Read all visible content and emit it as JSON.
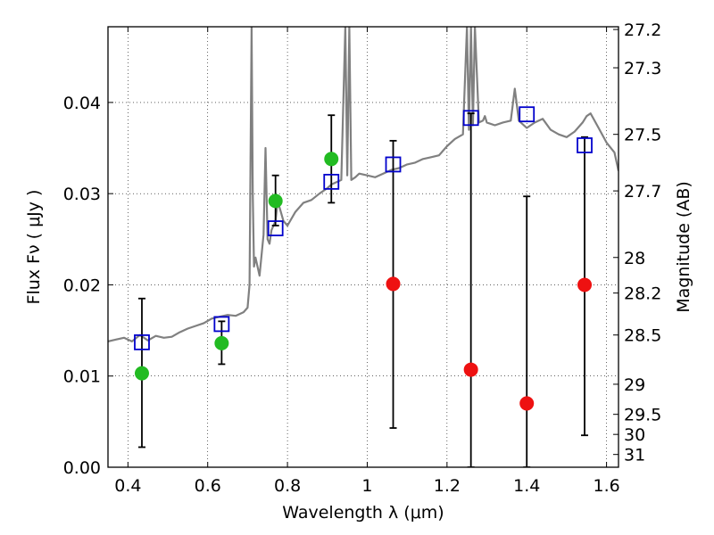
{
  "chart_data": {
    "type": "scatter",
    "xlabel": "Wavelength  λ (μm)",
    "ylabel": "Flux  Fν  ( μJy )",
    "y2label": "Magnitude (AB)",
    "xlim": [
      0.35,
      1.63
    ],
    "ylim": [
      0.0,
      0.0483
    ],
    "grid": true,
    "x_ticks": [
      0.4,
      0.6,
      0.8,
      1.0,
      1.2,
      1.4,
      1.6
    ],
    "x_tick_labels": [
      "0.4",
      "0.6",
      "0.8",
      "1",
      "1.2",
      "1.4",
      "1.6"
    ],
    "y_ticks": [
      0.0,
      0.01,
      0.02,
      0.03,
      0.04
    ],
    "y_tick_labels": [
      "0.00",
      "0.01",
      "0.02",
      "0.03",
      "0.04"
    ],
    "mag_ticks": [
      {
        "label": "27.2",
        "flux": 0.048
      },
      {
        "label": "27.3",
        "flux": 0.0438
      },
      {
        "label": "27.5",
        "flux": 0.0365
      },
      {
        "label": "27.7",
        "flux": 0.0303
      },
      {
        "label": "28",
        "flux": 0.023
      },
      {
        "label": "28.2",
        "flux": 0.0191
      },
      {
        "label": "28.5",
        "flux": 0.0145
      },
      {
        "label": "29",
        "flux": 0.0091
      },
      {
        "label": "29.5",
        "flux": 0.0058
      },
      {
        "label": "30",
        "flux": 0.0036
      },
      {
        "label": "31",
        "flux": 0.0014
      }
    ],
    "spectrum": {
      "color": "#808080",
      "x": [
        0.35,
        0.37,
        0.39,
        0.41,
        0.43,
        0.45,
        0.47,
        0.49,
        0.51,
        0.53,
        0.55,
        0.57,
        0.59,
        0.61,
        0.63,
        0.65,
        0.67,
        0.69,
        0.7,
        0.705,
        0.71,
        0.713,
        0.716,
        0.72,
        0.73,
        0.74,
        0.745,
        0.75,
        0.755,
        0.76,
        0.77,
        0.775,
        0.78,
        0.79,
        0.8,
        0.82,
        0.84,
        0.86,
        0.88,
        0.9,
        0.91,
        0.92,
        0.935,
        0.945,
        0.95,
        0.955,
        0.96,
        0.97,
        0.98,
        1.0,
        1.02,
        1.04,
        1.06,
        1.08,
        1.1,
        1.12,
        1.14,
        1.16,
        1.18,
        1.2,
        1.22,
        1.24,
        1.25,
        1.255,
        1.26,
        1.265,
        1.27,
        1.28,
        1.29,
        1.295,
        1.3,
        1.32,
        1.34,
        1.36,
        1.37,
        1.38,
        1.4,
        1.42,
        1.44,
        1.46,
        1.48,
        1.5,
        1.52,
        1.54,
        1.55,
        1.56,
        1.58,
        1.6,
        1.62,
        1.63
      ],
      "y": [
        0.0138,
        0.014,
        0.0142,
        0.0138,
        0.0145,
        0.0139,
        0.0144,
        0.0142,
        0.0143,
        0.0148,
        0.0152,
        0.0155,
        0.0158,
        0.0163,
        0.0165,
        0.0167,
        0.0166,
        0.017,
        0.0175,
        0.02,
        0.0483,
        0.03,
        0.022,
        0.023,
        0.021,
        0.0255,
        0.035,
        0.025,
        0.0245,
        0.026,
        0.027,
        0.029,
        0.0285,
        0.027,
        0.0265,
        0.028,
        0.029,
        0.0293,
        0.03,
        0.0306,
        0.031,
        0.0312,
        0.0315,
        0.0483,
        0.032,
        0.0483,
        0.0315,
        0.0318,
        0.0322,
        0.032,
        0.0318,
        0.0322,
        0.0326,
        0.0328,
        0.0332,
        0.0334,
        0.0338,
        0.034,
        0.0342,
        0.0352,
        0.036,
        0.0365,
        0.0483,
        0.037,
        0.0483,
        0.0375,
        0.0483,
        0.0378,
        0.038,
        0.0385,
        0.0378,
        0.0375,
        0.0378,
        0.038,
        0.0415,
        0.038,
        0.0372,
        0.0378,
        0.0382,
        0.037,
        0.0365,
        0.0362,
        0.0368,
        0.0378,
        0.0385,
        0.0388,
        0.0372,
        0.0356,
        0.0345,
        0.0325
      ]
    },
    "model_points": {
      "marker": "open-square",
      "color": "#0000cc",
      "x": [
        0.435,
        0.635,
        0.77,
        0.91,
        1.065,
        1.26,
        1.4,
        1.545
      ],
      "y": [
        0.0137,
        0.0157,
        0.0262,
        0.0313,
        0.0332,
        0.0383,
        0.0387,
        0.0353
      ]
    },
    "observed_points": [
      {
        "x": 0.435,
        "y": 0.0103,
        "yerr": [
          0.0022,
          0.0185
        ],
        "color": "#22bb22"
      },
      {
        "x": 0.635,
        "y": 0.0136,
        "yerr": [
          0.0113,
          0.016
        ],
        "color": "#22bb22"
      },
      {
        "x": 0.77,
        "y": 0.0292,
        "yerr": [
          0.0265,
          0.032
        ],
        "color": "#22bb22"
      },
      {
        "x": 0.91,
        "y": 0.0338,
        "yerr": [
          0.029,
          0.0386
        ],
        "color": "#22bb22"
      },
      {
        "x": 1.065,
        "y": 0.0201,
        "yerr": [
          0.0043,
          0.0358
        ],
        "color": "#ee1111"
      },
      {
        "x": 1.26,
        "y": 0.0107,
        "yerr": [
          0.0,
          0.0388
        ],
        "color": "#ee1111"
      },
      {
        "x": 1.4,
        "y": 0.007,
        "yerr": [
          0.0,
          0.0297
        ],
        "color": "#ee1111"
      },
      {
        "x": 1.545,
        "y": 0.02,
        "yerr": [
          0.0035,
          0.0362
        ],
        "color": "#ee1111"
      }
    ]
  }
}
